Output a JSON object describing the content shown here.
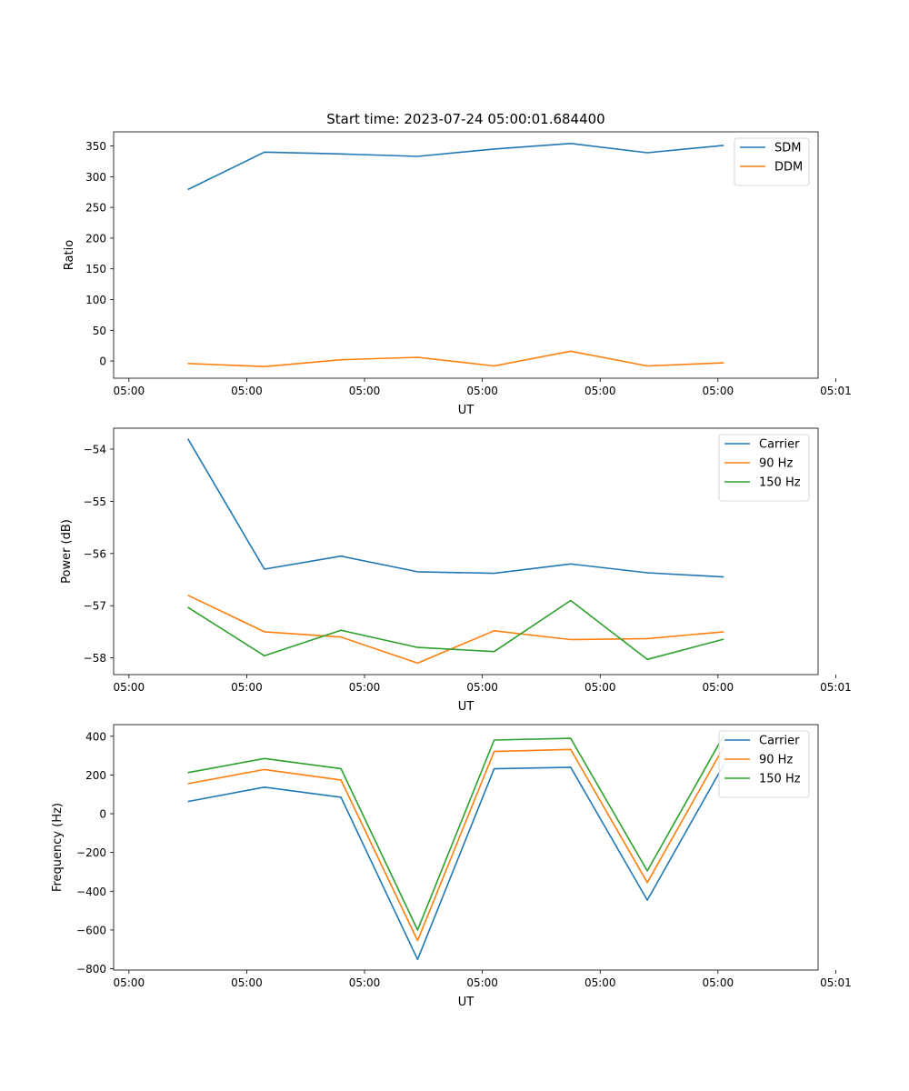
{
  "figure": {
    "title": "Start time: 2023-07-24 05:00:01.684400"
  },
  "chart_data": [
    {
      "type": "line",
      "title": "Start time: 2023-07-24 05:00:01.684400",
      "xlabel": "UT",
      "ylabel": "Ratio",
      "x": [
        0.5,
        1.15,
        1.8,
        2.45,
        3.1,
        3.75,
        4.4,
        5.05
      ],
      "xlim": [
        -0.13,
        5.85
      ],
      "xticks": [
        0,
        1,
        2,
        3,
        4,
        5,
        6
      ],
      "xtick_labels": [
        "05:00",
        "05:00",
        "05:00",
        "05:00",
        "05:00",
        "05:00",
        "05:01"
      ],
      "ylim": [
        -28,
        373
      ],
      "yticks": [
        0,
        50,
        100,
        150,
        200,
        250,
        300,
        350
      ],
      "ytick_labels": [
        "0",
        "50",
        "100",
        "150",
        "200",
        "250",
        "300",
        "350"
      ],
      "legend": "top-right",
      "series": [
        {
          "name": "SDM",
          "color": "#1f77b4",
          "values": [
            279,
            340,
            337,
            333,
            345,
            354,
            339,
            351
          ]
        },
        {
          "name": "DDM",
          "color": "#ff7f0e",
          "values": [
            -4,
            -9,
            2,
            6,
            -8,
            16,
            -8,
            -3
          ]
        }
      ]
    },
    {
      "type": "line",
      "xlabel": "UT",
      "ylabel": "Power (dB)",
      "x": [
        0.5,
        1.15,
        1.8,
        2.45,
        3.1,
        3.75,
        4.4,
        5.05
      ],
      "xlim": [
        -0.13,
        5.85
      ],
      "xticks": [
        0,
        1,
        2,
        3,
        4,
        5,
        6
      ],
      "xtick_labels": [
        "05:00",
        "05:00",
        "05:00",
        "05:00",
        "05:00",
        "05:00",
        "05:01"
      ],
      "ylim": [
        -58.32,
        -53.6
      ],
      "yticks": [
        -58,
        -57,
        -56,
        -55,
        -54
      ],
      "ytick_labels": [
        "−58",
        "−57",
        "−56",
        "−55",
        "−54"
      ],
      "legend": "top-right",
      "series": [
        {
          "name": "Carrier",
          "color": "#1f77b4",
          "values": [
            -53.8,
            -56.3,
            -56.05,
            -56.35,
            -56.38,
            -56.2,
            -56.37,
            -56.45
          ]
        },
        {
          "name": "90 Hz",
          "color": "#ff7f0e",
          "values": [
            -56.8,
            -57.5,
            -57.6,
            -58.1,
            -57.48,
            -57.65,
            -57.63,
            -57.5
          ]
        },
        {
          "name": "150 Hz",
          "color": "#2ca02c",
          "values": [
            -57.03,
            -57.96,
            -57.47,
            -57.8,
            -57.88,
            -56.9,
            -58.03,
            -57.64
          ]
        }
      ]
    },
    {
      "type": "line",
      "xlabel": "UT",
      "ylabel": "Frequency (Hz)",
      "x": [
        0.5,
        1.15,
        1.8,
        2.45,
        3.1,
        3.75,
        4.4,
        5.05
      ],
      "xlim": [
        -0.13,
        5.85
      ],
      "xticks": [
        0,
        1,
        2,
        3,
        4,
        5,
        6
      ],
      "xtick_labels": [
        "05:00",
        "05:00",
        "05:00",
        "05:00",
        "05:00",
        "05:00",
        "05:01"
      ],
      "ylim": [
        -807,
        460
      ],
      "yticks": [
        -800,
        -600,
        -400,
        -200,
        0,
        200,
        400
      ],
      "ytick_labels": [
        "−800",
        "−600",
        "−400",
        "−200",
        "0",
        "200",
        "400"
      ],
      "legend": "top-right",
      "series": [
        {
          "name": "Carrier",
          "color": "#1f77b4",
          "values": [
            63,
            137,
            85,
            -752,
            232,
            240,
            -446,
            254
          ]
        },
        {
          "name": "90 Hz",
          "color": "#ff7f0e",
          "values": [
            155,
            228,
            174,
            -655,
            321,
            332,
            -355,
            345
          ]
        },
        {
          "name": "150 Hz",
          "color": "#2ca02c",
          "values": [
            212,
            285,
            233,
            -600,
            380,
            389,
            -295,
            405
          ]
        }
      ]
    }
  ]
}
